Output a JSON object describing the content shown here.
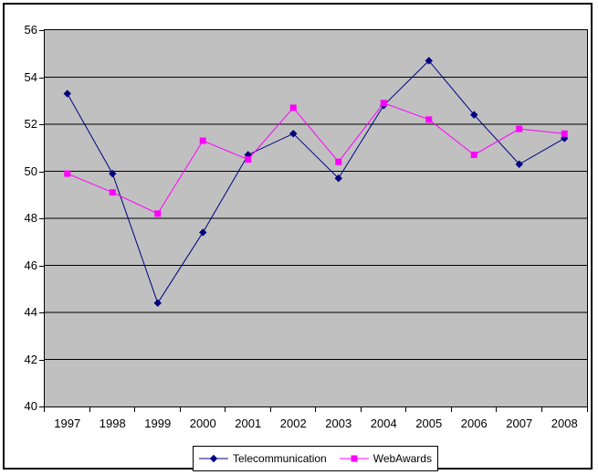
{
  "chart_data": {
    "type": "line",
    "title": "",
    "xlabel": "",
    "ylabel": "",
    "categories": [
      "1997",
      "1998",
      "1999",
      "2000",
      "2001",
      "2002",
      "2003",
      "2004",
      "2005",
      "2006",
      "2007",
      "2008"
    ],
    "series": [
      {
        "name": "Telecommunication",
        "color": "#000080",
        "marker": "diamond",
        "values": [
          53.3,
          49.9,
          44.4,
          47.4,
          50.7,
          51.6,
          49.7,
          52.8,
          54.7,
          52.4,
          50.3,
          51.4
        ]
      },
      {
        "name": "WebAwards",
        "color": "#FF00FF",
        "marker": "square",
        "values": [
          49.9,
          49.1,
          48.2,
          51.3,
          50.5,
          52.7,
          50.4,
          52.9,
          52.2,
          50.7,
          51.8,
          51.6
        ]
      }
    ],
    "ylim": [
      40,
      56
    ],
    "y_tick_step": 2,
    "y_tick_labels": [
      "56",
      "54",
      "52",
      "50",
      "48",
      "46",
      "44",
      "42",
      "40"
    ],
    "grid": "horizontal-only",
    "gridline_color": "#000000",
    "plot_background": "#C0C0C0",
    "chart_background": "#FFFFFF",
    "legend_position": "bottom-center"
  }
}
